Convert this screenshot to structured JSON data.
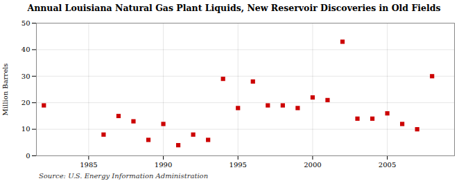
{
  "chart_data": {
    "type": "scatter",
    "title": "Annual Louisiana Natural Gas Plant Liquids,  New Reservoir Discoveries in Old Fields",
    "ylabel": "Million Barrels",
    "source": "Source: U.S. Energy Information Administration",
    "x": [
      1982,
      1986,
      1987,
      1988,
      1989,
      1990,
      1991,
      1992,
      1993,
      1994,
      1995,
      1996,
      1997,
      1998,
      1999,
      2000,
      2001,
      2002,
      2003,
      2004,
      2005,
      2006,
      2007,
      2008
    ],
    "values": [
      19,
      8,
      15,
      13,
      6,
      12,
      4,
      8,
      6,
      29,
      18,
      28,
      19,
      19,
      18,
      22,
      21,
      43,
      14,
      14,
      16,
      12,
      10,
      30
    ],
    "color": "#CC0000",
    "marker": "square",
    "xlim": [
      1981.5,
      2009.5
    ],
    "xticks": [
      1985,
      1990,
      1995,
      2000,
      2005
    ],
    "ylim": [
      0,
      50
    ],
    "yticks": [
      0,
      10,
      20,
      30,
      40,
      50
    ],
    "grid": true
  }
}
